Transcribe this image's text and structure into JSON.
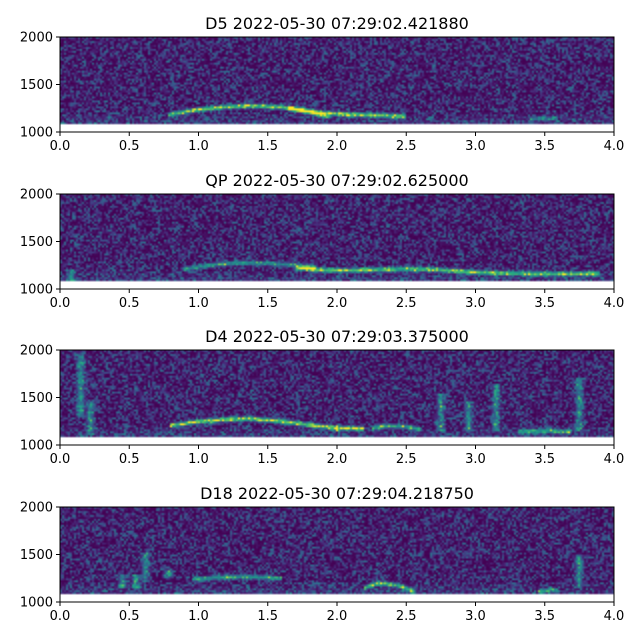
{
  "chart_data": [
    {
      "type": "heatmap",
      "title": "D5 2022-05-30 07:29:02.421880",
      "xlim": [
        0.0,
        4.0
      ],
      "ylim": [
        1000,
        2000
      ],
      "xticks": [
        "0.0",
        "0.5",
        "1.0",
        "1.5",
        "2.0",
        "2.5",
        "3.0",
        "3.5",
        "4.0"
      ],
      "yticks": [
        "1000",
        "1500",
        "2000"
      ],
      "colormap": "viridis",
      "data_floor_y": 1090,
      "tracks": [
        {
          "x": [
            0.78,
            1.0,
            1.2,
            1.4,
            1.6,
            1.75,
            1.9,
            2.1,
            2.3,
            2.5
          ],
          "y": [
            1180,
            1235,
            1265,
            1275,
            1260,
            1235,
            1200,
            1185,
            1175,
            1165
          ],
          "intensity": 0.9
        },
        {
          "x": [
            1.65,
            1.8,
            1.95
          ],
          "y": [
            1250,
            1205,
            1160
          ],
          "intensity": 0.7
        },
        {
          "x": [
            3.4,
            3.6
          ],
          "y": [
            1140,
            1140
          ],
          "intensity": 0.4
        }
      ],
      "bursts": []
    },
    {
      "type": "heatmap",
      "title": "QP 2022-05-30 07:29:02.625000",
      "xlim": [
        0.0,
        4.0
      ],
      "ylim": [
        1000,
        2000
      ],
      "xticks": [
        "0.0",
        "0.5",
        "1.0",
        "1.5",
        "2.0",
        "2.5",
        "3.0",
        "3.5",
        "4.0"
      ],
      "yticks": [
        "1000",
        "1500",
        "2000"
      ],
      "colormap": "viridis",
      "data_floor_y": 1090,
      "tracks": [
        {
          "x": [
            0.9,
            1.1,
            1.3,
            1.5,
            1.7,
            1.85
          ],
          "y": [
            1210,
            1255,
            1275,
            1270,
            1250,
            1220
          ],
          "intensity": 0.6
        },
        {
          "x": [
            1.7,
            1.9,
            2.1,
            2.3,
            2.5,
            2.7,
            2.9,
            3.1,
            3.3,
            3.5,
            3.7,
            3.9
          ],
          "y": [
            1220,
            1200,
            1195,
            1205,
            1210,
            1205,
            1185,
            1170,
            1165,
            1160,
            1160,
            1165
          ],
          "intensity": 0.85
        }
      ],
      "bursts": [
        {
          "x": 0.08,
          "y0": 1090,
          "y1": 1200
        }
      ]
    },
    {
      "type": "heatmap",
      "title": "D4 2022-05-30 07:29:03.375000",
      "xlim": [
        0.0,
        4.0
      ],
      "ylim": [
        1000,
        2000
      ],
      "xticks": [
        "0.0",
        "0.5",
        "1.0",
        "1.5",
        "2.0",
        "2.5",
        "3.0",
        "3.5",
        "4.0"
      ],
      "yticks": [
        "1000",
        "1500",
        "2000"
      ],
      "colormap": "viridis",
      "data_floor_y": 1090,
      "tracks": [
        {
          "x": [
            0.8,
            1.0,
            1.2,
            1.4,
            1.6,
            1.8,
            2.0,
            2.2
          ],
          "y": [
            1205,
            1245,
            1270,
            1275,
            1250,
            1210,
            1180,
            1170
          ],
          "intensity": 0.95
        },
        {
          "x": [
            2.25,
            2.35,
            2.5,
            2.6
          ],
          "y": [
            1175,
            1200,
            1195,
            1165
          ],
          "intensity": 0.7
        },
        {
          "x": [
            3.3,
            3.5,
            3.7
          ],
          "y": [
            1140,
            1150,
            1140
          ],
          "intensity": 0.6
        }
      ],
      "bursts": [
        {
          "x": 0.15,
          "y0": 1300,
          "y1": 1950
        },
        {
          "x": 0.22,
          "y0": 1100,
          "y1": 1450
        },
        {
          "x": 2.75,
          "y0": 1150,
          "y1": 1550
        },
        {
          "x": 2.95,
          "y0": 1150,
          "y1": 1450
        },
        {
          "x": 3.15,
          "y0": 1150,
          "y1": 1650
        },
        {
          "x": 3.75,
          "y0": 1150,
          "y1": 1700
        }
      ]
    },
    {
      "type": "heatmap",
      "title": "D18 2022-05-30 07:29:04.218750",
      "xlim": [
        0.0,
        4.0
      ],
      "ylim": [
        1000,
        2000
      ],
      "xticks": [
        "0.0",
        "0.5",
        "1.0",
        "1.5",
        "2.0",
        "2.5",
        "3.0",
        "3.5",
        "4.0"
      ],
      "yticks": [
        "1000",
        "1500",
        "2000"
      ],
      "colormap": "viridis",
      "data_floor_y": 1090,
      "tracks": [
        {
          "x": [
            0.95,
            1.1,
            1.3,
            1.5,
            1.6
          ],
          "y": [
            1235,
            1255,
            1265,
            1260,
            1245
          ],
          "intensity": 0.65
        },
        {
          "x": [
            2.2,
            2.3,
            2.45,
            2.55
          ],
          "y": [
            1150,
            1200,
            1175,
            1110
          ],
          "intensity": 0.8
        },
        {
          "x": [
            3.45,
            3.55,
            3.6
          ],
          "y": [
            1110,
            1130,
            1110
          ],
          "intensity": 0.6
        }
      ],
      "bursts": [
        {
          "x": 0.45,
          "y0": 1150,
          "y1": 1300
        },
        {
          "x": 0.55,
          "y0": 1150,
          "y1": 1300
        },
        {
          "x": 0.62,
          "y0": 1200,
          "y1": 1530
        },
        {
          "x": 0.78,
          "y0": 1250,
          "y1": 1330
        },
        {
          "x": 3.75,
          "y0": 1150,
          "y1": 1500
        }
      ]
    }
  ]
}
